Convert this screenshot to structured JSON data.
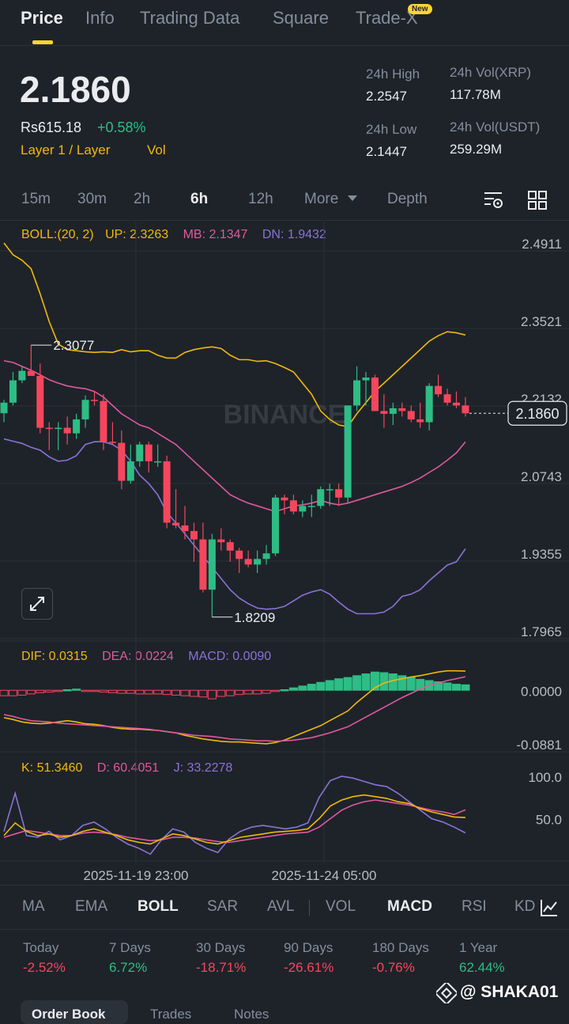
{
  "tabs": [
    "Price",
    "Info",
    "Trading Data",
    "Square",
    "Trade-X"
  ],
  "new_badge": "New",
  "price": {
    "last": "2.1860",
    "fiat": "Rs615.18",
    "change": "+0.58%",
    "tag1": "Layer 1 / Layer",
    "tag2": "Vol",
    "high_label": "24h High",
    "high": "2.2547",
    "low_label": "24h Low",
    "low": "2.1447",
    "vol_xrp_label": "24h Vol(XRP)",
    "vol_xrp": "117.78M",
    "vol_usdt_label": "24h Vol(USDT)",
    "vol_usdt": "259.29M"
  },
  "timeframes": [
    "15m",
    "30m",
    "2h",
    "6h",
    "12h",
    "More",
    "Depth"
  ],
  "active_timeframe": "6h",
  "boll": {
    "label": "BOLL:(20, 2)",
    "up": "UP: 2.3263",
    "mb": "MB: 2.1347",
    "dn": "DN: 1.9432"
  },
  "macd": {
    "dif": "DIF: 0.0315",
    "dea": "DEA: 0.0224",
    "macd": "MACD: 0.0090"
  },
  "kdj": {
    "k": "K: 51.3460",
    "d": "D: 60.4051",
    "j": "J: 33.2278"
  },
  "watermark": "BINANCE",
  "indicators": [
    "MA",
    "EMA",
    "BOLL",
    "SAR",
    "AVL",
    "VOL",
    "MACD",
    "RSI",
    "KD"
  ],
  "active_indicators": [
    "BOLL",
    "MACD"
  ],
  "performance": [
    {
      "label": "Today",
      "value": "-2.52%",
      "dir": "down"
    },
    {
      "label": "7 Days",
      "value": "6.72%",
      "dir": "up"
    },
    {
      "label": "30 Days",
      "value": "-18.71%",
      "dir": "down"
    },
    {
      "label": "90 Days",
      "value": "-26.61%",
      "dir": "down"
    },
    {
      "label": "180 Days",
      "value": "-0.76%",
      "dir": "down"
    },
    {
      "label": "1 Year",
      "value": "62.44%",
      "dir": "up"
    }
  ],
  "bottom_tabs": [
    "Order Book",
    "Trades",
    "Notes"
  ],
  "user_tag": "@ SHAKA01",
  "colors": {
    "up": "#2ebd85",
    "down": "#f6465d",
    "accent": "#fcd535",
    "mb": "#e0589e",
    "dn": "#8a72d6"
  },
  "chart_data": {
    "type": "candlestick",
    "y_axis_ticks": [
      "2.4911",
      "2.3521",
      "2.2132",
      "2.0743",
      "1.9355",
      "1.7965"
    ],
    "ylim": [
      1.7965,
      2.4911
    ],
    "current_price": "2.1860",
    "max_label": "2.3077",
    "min_label": "1.8209",
    "x_labels": [
      "2025-11-19 23:00",
      "2025-11-24 05:00"
    ],
    "candles": [
      {
        "o": 2.186,
        "h": 2.21,
        "l": 2.17,
        "c": 2.205
      },
      {
        "o": 2.205,
        "h": 2.26,
        "l": 2.2,
        "c": 2.245
      },
      {
        "o": 2.245,
        "h": 2.27,
        "l": 2.24,
        "c": 2.262
      },
      {
        "o": 2.262,
        "h": 2.308,
        "l": 2.253,
        "c": 2.253
      },
      {
        "o": 2.253,
        "h": 2.275,
        "l": 2.15,
        "c": 2.16
      },
      {
        "o": 2.16,
        "h": 2.17,
        "l": 2.12,
        "c": 2.158
      },
      {
        "o": 2.158,
        "h": 2.17,
        "l": 2.12,
        "c": 2.16
      },
      {
        "o": 2.16,
        "h": 2.18,
        "l": 2.13,
        "c": 2.15
      },
      {
        "o": 2.15,
        "h": 2.185,
        "l": 2.14,
        "c": 2.175
      },
      {
        "o": 2.175,
        "h": 2.218,
        "l": 2.16,
        "c": 2.21
      },
      {
        "o": 2.21,
        "h": 2.225,
        "l": 2.2,
        "c": 2.208
      },
      {
        "o": 2.208,
        "h": 2.22,
        "l": 2.12,
        "c": 2.135
      },
      {
        "o": 2.135,
        "h": 2.17,
        "l": 2.13,
        "c": 2.133
      },
      {
        "o": 2.133,
        "h": 2.155,
        "l": 2.05,
        "c": 2.065
      },
      {
        "o": 2.065,
        "h": 2.13,
        "l": 2.06,
        "c": 2.1
      },
      {
        "o": 2.1,
        "h": 2.135,
        "l": 2.09,
        "c": 2.13
      },
      {
        "o": 2.13,
        "h": 2.135,
        "l": 2.08,
        "c": 2.1
      },
      {
        "o": 2.1,
        "h": 2.13,
        "l": 2.09,
        "c": 2.1
      },
      {
        "o": 2.1,
        "h": 2.11,
        "l": 1.98,
        "c": 1.99
      },
      {
        "o": 1.99,
        "h": 2.05,
        "l": 1.98,
        "c": 1.985
      },
      {
        "o": 1.985,
        "h": 2.02,
        "l": 1.96,
        "c": 1.975
      },
      {
        "o": 1.975,
        "h": 1.99,
        "l": 1.92,
        "c": 1.96
      },
      {
        "o": 1.96,
        "h": 1.99,
        "l": 1.865,
        "c": 1.87
      },
      {
        "o": 1.87,
        "h": 1.97,
        "l": 1.8209,
        "c": 1.96
      },
      {
        "o": 1.96,
        "h": 1.98,
        "l": 1.94,
        "c": 1.955
      },
      {
        "o": 1.955,
        "h": 1.96,
        "l": 1.92,
        "c": 1.94
      },
      {
        "o": 1.94,
        "h": 1.945,
        "l": 1.9,
        "c": 1.925
      },
      {
        "o": 1.925,
        "h": 1.94,
        "l": 1.91,
        "c": 1.915
      },
      {
        "o": 1.915,
        "h": 1.94,
        "l": 1.9,
        "c": 1.925
      },
      {
        "o": 1.925,
        "h": 1.95,
        "l": 1.915,
        "c": 1.935
      },
      {
        "o": 1.935,
        "h": 2.04,
        "l": 1.93,
        "c": 2.035
      },
      {
        "o": 2.035,
        "h": 2.04,
        "l": 2.005,
        "c": 2.03
      },
      {
        "o": 2.03,
        "h": 2.04,
        "l": 2.005,
        "c": 2.01
      },
      {
        "o": 2.01,
        "h": 2.03,
        "l": 2.0,
        "c": 2.02
      },
      {
        "o": 2.02,
        "h": 2.04,
        "l": 2.0,
        "c": 2.02
      },
      {
        "o": 2.02,
        "h": 2.055,
        "l": 2.015,
        "c": 2.05
      },
      {
        "o": 2.05,
        "h": 2.06,
        "l": 2.02,
        "c": 2.05
      },
      {
        "o": 2.05,
        "h": 2.06,
        "l": 2.02,
        "c": 2.035
      },
      {
        "o": 2.035,
        "h": 2.2,
        "l": 2.025,
        "c": 2.2
      },
      {
        "o": 2.2,
        "h": 2.27,
        "l": 2.19,
        "c": 2.245
      },
      {
        "o": 2.245,
        "h": 2.26,
        "l": 2.2,
        "c": 2.25
      },
      {
        "o": 2.25,
        "h": 2.255,
        "l": 2.19,
        "c": 2.19
      },
      {
        "o": 2.19,
        "h": 2.22,
        "l": 2.16,
        "c": 2.185
      },
      {
        "o": 2.185,
        "h": 2.205,
        "l": 2.165,
        "c": 2.195
      },
      {
        "o": 2.195,
        "h": 2.205,
        "l": 2.18,
        "c": 2.19
      },
      {
        "o": 2.19,
        "h": 2.2,
        "l": 2.17,
        "c": 2.175
      },
      {
        "o": 2.175,
        "h": 2.205,
        "l": 2.16,
        "c": 2.17
      },
      {
        "o": 2.17,
        "h": 2.24,
        "l": 2.155,
        "c": 2.235
      },
      {
        "o": 2.235,
        "h": 2.255,
        "l": 2.215,
        "c": 2.22
      },
      {
        "o": 2.22,
        "h": 2.23,
        "l": 2.2,
        "c": 2.205
      },
      {
        "o": 2.205,
        "h": 2.225,
        "l": 2.195,
        "c": 2.2
      },
      {
        "o": 2.2,
        "h": 2.215,
        "l": 2.18,
        "c": 2.186
      }
    ],
    "boll_up": [
      2.4911,
      2.47,
      2.46,
      2.445,
      2.4,
      2.35,
      2.31,
      2.3,
      2.298,
      2.296,
      2.295,
      2.296,
      2.295,
      2.3,
      2.296,
      2.298,
      2.298,
      2.29,
      2.285,
      2.285,
      2.295,
      2.3,
      2.303,
      2.305,
      2.302,
      2.29,
      2.282,
      2.282,
      2.279,
      2.28,
      2.275,
      2.268,
      2.26,
      2.24,
      2.22,
      2.19,
      2.175,
      2.165,
      2.162,
      2.185,
      2.205,
      2.225,
      2.24,
      2.255,
      2.27,
      2.285,
      2.3,
      2.315,
      2.325,
      2.332,
      2.33,
      2.3263
    ],
    "boll_mb": [
      2.28,
      2.277,
      2.27,
      2.263,
      2.255,
      2.246,
      2.24,
      2.235,
      2.232,
      2.23,
      2.225,
      2.215,
      2.2,
      2.185,
      2.175,
      2.165,
      2.16,
      2.15,
      2.14,
      2.13,
      2.115,
      2.1,
      2.085,
      2.07,
      2.055,
      2.04,
      2.032,
      2.025,
      2.02,
      2.015,
      2.01,
      2.015,
      2.02,
      2.022,
      2.025,
      2.03,
      2.025,
      2.022,
      2.025,
      2.03,
      2.035,
      2.04,
      2.045,
      2.05,
      2.055,
      2.062,
      2.07,
      2.08,
      2.09,
      2.102,
      2.115,
      2.1347
    ],
    "boll_dn": [
      2.14,
      2.136,
      2.132,
      2.125,
      2.12,
      2.108,
      2.1,
      2.102,
      2.11,
      2.13,
      2.135,
      2.135,
      2.13,
      2.12,
      2.1,
      2.075,
      2.06,
      2.04,
      2.008,
      1.99,
      1.97,
      1.95,
      1.93,
      1.91,
      1.89,
      1.87,
      1.855,
      1.845,
      1.837,
      1.835,
      1.836,
      1.84,
      1.85,
      1.86,
      1.866,
      1.87,
      1.862,
      1.848,
      1.835,
      1.827,
      1.827,
      1.827,
      1.83,
      1.84,
      1.858,
      1.862,
      1.87,
      1.886,
      1.9,
      1.914,
      1.92,
      1.9432
    ],
    "macd_ylim": [
      -0.0881,
      0.042
    ],
    "macd_ticks": [
      "0.0000",
      "-0.0881"
    ],
    "macd_dif": [
      -0.045,
      -0.048,
      -0.052,
      -0.054,
      -0.055,
      -0.054,
      -0.052,
      -0.05,
      -0.052,
      -0.055,
      -0.056,
      -0.058,
      -0.061,
      -0.063,
      -0.064,
      -0.064,
      -0.065,
      -0.066,
      -0.068,
      -0.07,
      -0.074,
      -0.077,
      -0.08,
      -0.082,
      -0.084,
      -0.085,
      -0.085,
      -0.086,
      -0.087,
      -0.088,
      -0.086,
      -0.082,
      -0.076,
      -0.07,
      -0.064,
      -0.058,
      -0.05,
      -0.042,
      -0.034,
      -0.02,
      -0.008,
      0.004,
      0.012,
      0.016,
      0.019,
      0.022,
      0.024,
      0.027,
      0.03,
      0.032,
      0.032,
      0.0315
    ],
    "macd_dea": [
      -0.04,
      -0.043,
      -0.047,
      -0.05,
      -0.051,
      -0.052,
      -0.054,
      -0.055,
      -0.056,
      -0.057,
      -0.058,
      -0.059,
      -0.06,
      -0.061,
      -0.062,
      -0.063,
      -0.064,
      -0.066,
      -0.068,
      -0.07,
      -0.072,
      -0.074,
      -0.075,
      -0.076,
      -0.078,
      -0.08,
      -0.081,
      -0.082,
      -0.083,
      -0.083,
      -0.084,
      -0.083,
      -0.082,
      -0.08,
      -0.078,
      -0.074,
      -0.07,
      -0.065,
      -0.06,
      -0.052,
      -0.044,
      -0.036,
      -0.028,
      -0.02,
      -0.012,
      -0.005,
      0.002,
      0.008,
      0.012,
      0.016,
      0.019,
      0.0224
    ],
    "macd_hist": [
      -0.009,
      -0.009,
      -0.008,
      -0.006,
      -0.004,
      -0.003,
      -0.002,
      0.001,
      0.002,
      -0.001,
      -0.002,
      -0.003,
      -0.004,
      -0.005,
      -0.005,
      -0.006,
      -0.006,
      -0.006,
      -0.007,
      -0.008,
      -0.009,
      -0.01,
      -0.011,
      -0.014,
      -0.01,
      -0.009,
      -0.007,
      -0.006,
      -0.006,
      -0.005,
      -0.002,
      0.001,
      0.004,
      0.007,
      0.01,
      0.013,
      0.016,
      0.019,
      0.021,
      0.024,
      0.027,
      0.03,
      0.029,
      0.027,
      0.024,
      0.021,
      0.018,
      0.016,
      0.014,
      0.012,
      0.01,
      0.009
    ],
    "kdj_ylim": [
      0,
      115
    ],
    "kdj_ticks": [
      "100.0",
      "50.0"
    ],
    "kdj_k": [
      30,
      45,
      35,
      30,
      32,
      28,
      30,
      35,
      38,
      34,
      30,
      25,
      22,
      20,
      26,
      32,
      30,
      26,
      22,
      20,
      24,
      28,
      30,
      32,
      34,
      35,
      36,
      38,
      50,
      65,
      72,
      76,
      78,
      76,
      74,
      70,
      68,
      62,
      58,
      55,
      52,
      51.346
    ],
    "kdj_d": [
      28,
      32,
      36,
      34,
      32,
      30,
      30,
      33,
      34,
      33,
      31,
      28,
      26,
      24,
      25,
      28,
      28,
      27,
      25,
      23,
      22,
      24,
      26,
      28,
      30,
      32,
      33,
      34,
      40,
      50,
      60,
      66,
      70,
      72,
      70,
      68,
      66,
      63,
      60,
      58,
      55,
      60.4051
    ],
    "kdj_j": [
      35,
      80,
      30,
      28,
      35,
      25,
      30,
      42,
      46,
      38,
      28,
      20,
      15,
      8,
      25,
      38,
      34,
      22,
      15,
      10,
      26,
      35,
      40,
      42,
      40,
      38,
      40,
      45,
      75,
      95,
      100,
      98,
      94,
      90,
      88,
      80,
      70,
      60,
      50,
      46,
      40,
      33.2278
    ]
  }
}
